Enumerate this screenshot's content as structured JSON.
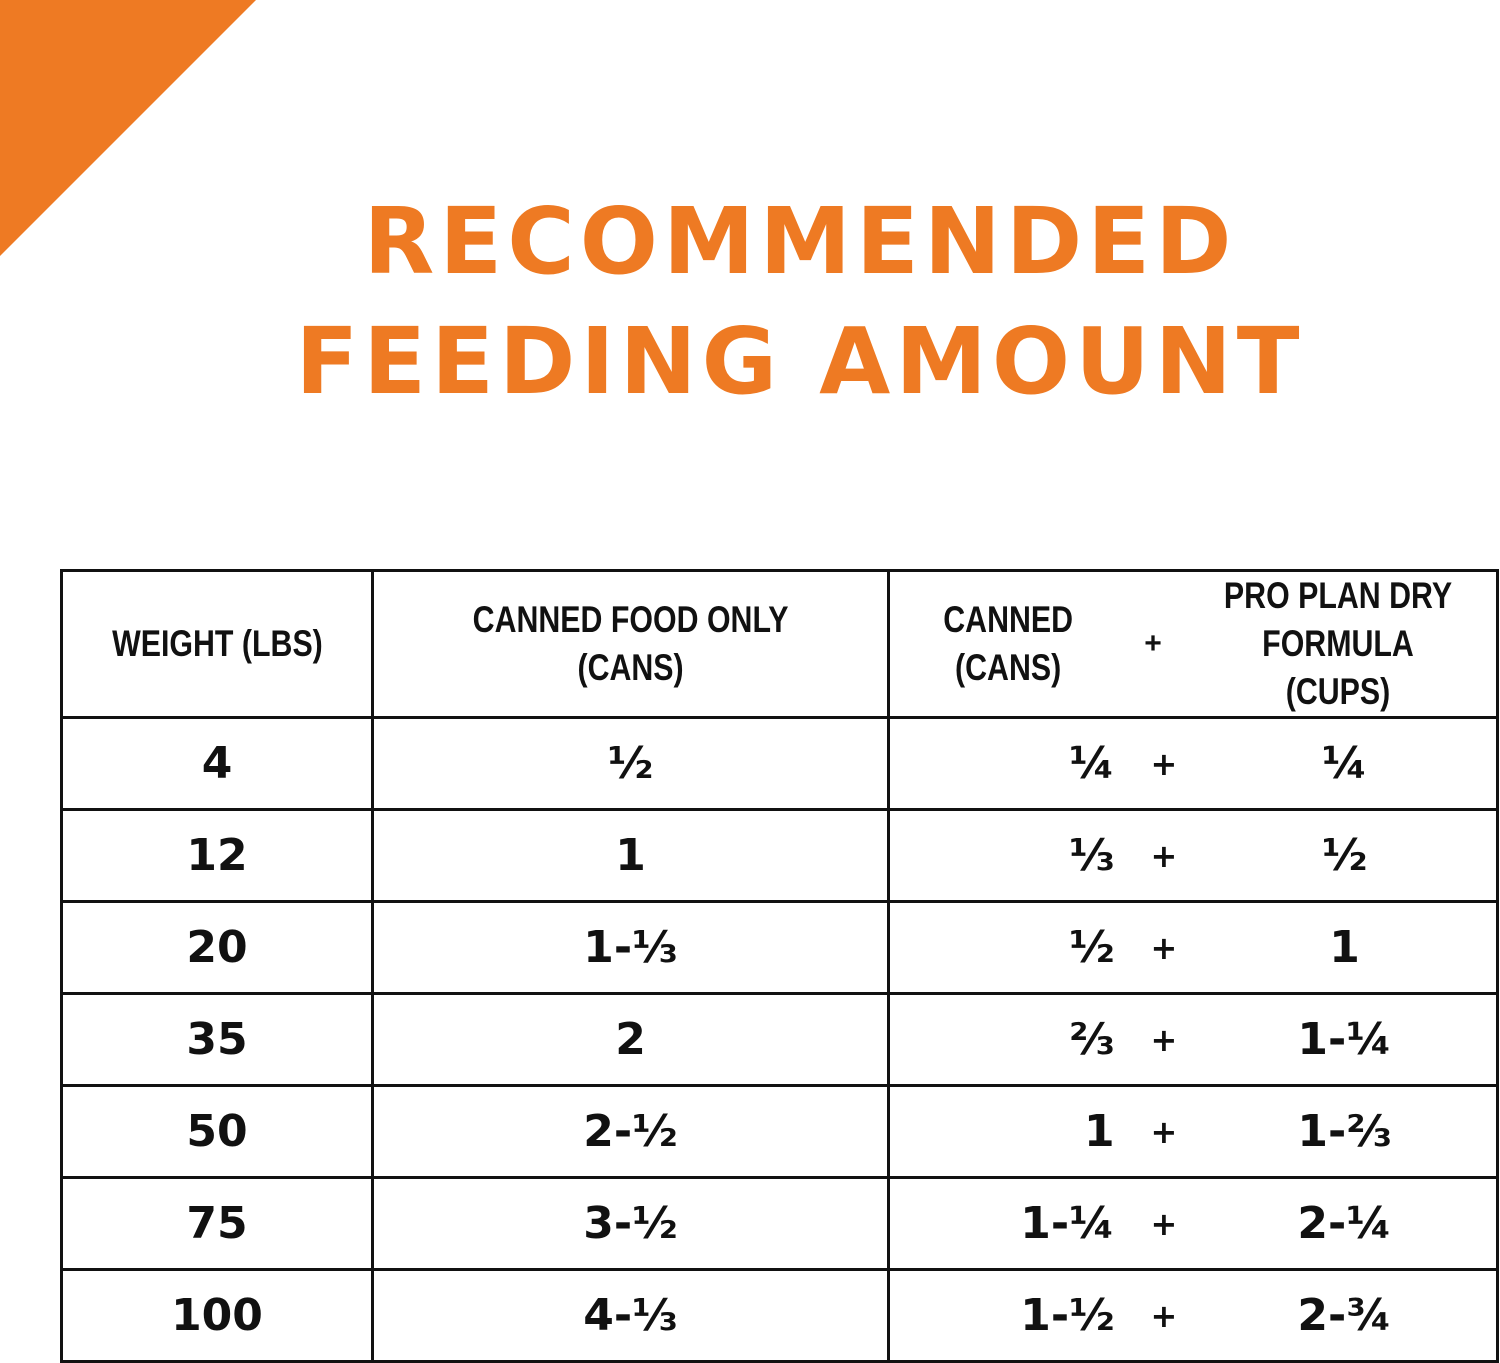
{
  "colors": {
    "accent": "#ee7a23",
    "text": "#111111",
    "background": "#ffffff"
  },
  "title": {
    "line1": "RECOMMENDED",
    "line2": "FEEDING AMOUNT"
  },
  "table": {
    "headers": {
      "weight": "WEIGHT (LBS)",
      "canned_only_line1": "CANNED FOOD ONLY",
      "canned_only_line2": "(CANS)",
      "canned_line1": "CANNED",
      "canned_line2": "(CANS)",
      "plus": "+",
      "dry_line1": "PRO PLAN DRY",
      "dry_line2": "FORMULA (CUPS)"
    },
    "rows": [
      {
        "weight": "4",
        "canned_only": "½",
        "canned": "¼",
        "plus": "+",
        "dry": "¼"
      },
      {
        "weight": "12",
        "canned_only": "1",
        "canned": "⅓",
        "plus": "+",
        "dry": "½"
      },
      {
        "weight": "20",
        "canned_only": "1-⅓",
        "canned": "½",
        "plus": "+",
        "dry": "1"
      },
      {
        "weight": "35",
        "canned_only": "2",
        "canned": "⅔",
        "plus": "+",
        "dry": "1-¼"
      },
      {
        "weight": "50",
        "canned_only": "2-½",
        "canned": "1",
        "plus": "+",
        "dry": "1-⅔"
      },
      {
        "weight": "75",
        "canned_only": "3-½",
        "canned": "1-¼",
        "plus": "+",
        "dry": "2-¼"
      },
      {
        "weight": "100",
        "canned_only": "4-⅓",
        "canned": "1-½",
        "plus": "+",
        "dry": "2-¾"
      }
    ]
  }
}
